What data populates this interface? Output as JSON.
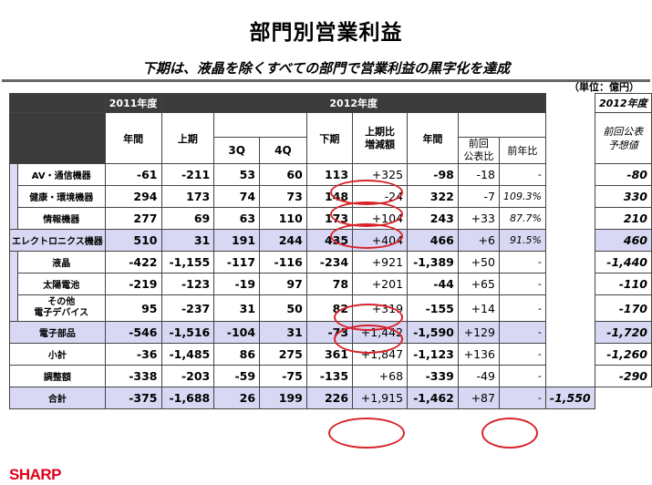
{
  "title": "部門別営業利益",
  "subtitle": "下期は、液晶を除くすべての部門で営業利益の黒字化を達成",
  "unit": "（単位：億円）",
  "header": {
    "fy2011": "2011年度",
    "fy2012": "2012年度",
    "fy2012_forecast": "2012年度",
    "annual": "年間",
    "first_half": "上期",
    "q3": "3Q",
    "q4": "4Q",
    "second_half": "下期",
    "vs_first_half": "上期比\n増減額",
    "annual2": "年間",
    "vs_forecast": "前回\n公表比",
    "yoy": "前年比",
    "forecast": "前回公表\n予想値"
  },
  "rows": [
    {
      "label": "AV・通信機器",
      "fy11": "-61",
      "h1": "-211",
      "q3": "53",
      "q4": "60",
      "h2": "113",
      "diff": "+325",
      "annual": "-98",
      "vsf": "-18",
      "yoy": "-",
      "fc": "-80"
    },
    {
      "label": "健康・環境機器",
      "fy11": "294",
      "h1": "173",
      "q3": "74",
      "q4": "73",
      "h2": "148",
      "diff": "-24",
      "annual": "322",
      "vsf": "-7",
      "yoy": "109.3%",
      "fc": "330"
    },
    {
      "label": "情報機器",
      "fy11": "277",
      "h1": "69",
      "q3": "63",
      "q4": "110",
      "h2": "173",
      "diff": "+104",
      "annual": "243",
      "vsf": "+33",
      "yoy": "87.7%",
      "fc": "210"
    },
    {
      "label": "エレクトロニクス機器",
      "fy11": "510",
      "h1": "31",
      "q3": "191",
      "q4": "244",
      "h2": "435",
      "diff": "+404",
      "annual": "466",
      "vsf": "+6",
      "yoy": "91.5%",
      "fc": "460"
    },
    {
      "label": "液晶",
      "fy11": "-422",
      "h1": "-1,155",
      "q3": "-117",
      "q4": "-116",
      "h2": "-234",
      "diff": "+921",
      "annual": "-1,389",
      "vsf": "+50",
      "yoy": "-",
      "fc": "-1,440"
    },
    {
      "label": "太陽電池",
      "fy11": "-219",
      "h1": "-123",
      "q3": "-19",
      "q4": "97",
      "h2": "78",
      "diff": "+201",
      "annual": "-44",
      "vsf": "+65",
      "yoy": "-",
      "fc": "-110"
    },
    {
      "label": "その他\n電子デバイス",
      "fy11": "95",
      "h1": "-237",
      "q3": "31",
      "q4": "50",
      "h2": "82",
      "diff": "+319",
      "annual": "-155",
      "vsf": "+14",
      "yoy": "-",
      "fc": "-170"
    },
    {
      "label": "電子部品",
      "fy11": "-546",
      "h1": "-1,516",
      "q3": "-104",
      "q4": "31",
      "h2": "-73",
      "diff": "+1,442",
      "annual": "-1,590",
      "vsf": "+129",
      "yoy": "-",
      "fc": "-1,720"
    },
    {
      "label": "小計",
      "fy11": "-36",
      "h1": "-1,485",
      "q3": "86",
      "q4": "275",
      "h2": "361",
      "diff": "+1,847",
      "annual": "-1,123",
      "vsf": "+136",
      "yoy": "-",
      "fc": "-1,260"
    },
    {
      "label": "調整額",
      "fy11": "-338",
      "h1": "-203",
      "q3": "-59",
      "q4": "-75",
      "h2": "-135",
      "diff": "+68",
      "annual": "-339",
      "vsf": "-49",
      "yoy": "-",
      "fc": "-290"
    },
    {
      "label": "合計",
      "fy11": "-375",
      "h1": "-1,688",
      "q3": "26",
      "q4": "199",
      "h2": "226",
      "diff": "+1,915",
      "annual": "-1,462",
      "vsf": "+87",
      "yoy": "-",
      "fc": "-1,550"
    }
  ],
  "logo": "SHARP",
  "colors": {
    "highlight": "#d8232a",
    "subtotal_fill": "#d8d8f4",
    "header_dark": "#3b3b3b",
    "brand": "#e1001a"
  }
}
